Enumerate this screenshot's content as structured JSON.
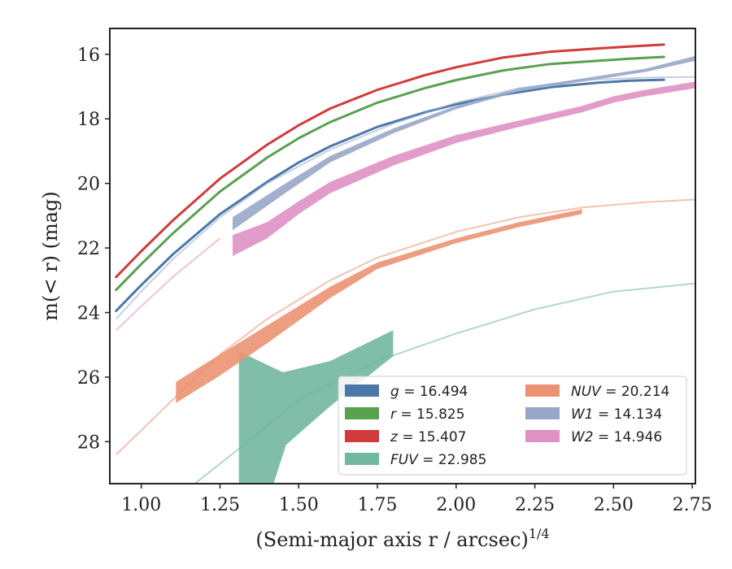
{
  "chart_data": {
    "type": "line",
    "xlabel": "(Semi-major axis r / arcsec)",
    "xlabel_sup": "1/4",
    "ylabel": "m(< r) (mag)",
    "xlim": [
      0.9,
      2.76
    ],
    "ylim": [
      29.3,
      15.2
    ],
    "y_inverted": true,
    "x_ticks": [
      "1.00",
      "1.25",
      "1.50",
      "1.75",
      "2.00",
      "2.25",
      "2.50",
      "2.75"
    ],
    "y_ticks": [
      "16",
      "18",
      "20",
      "22",
      "24",
      "26",
      "28"
    ],
    "grid": false,
    "legend_location": "lower right",
    "colors": {
      "g": "#4c78a8",
      "r": "#59a14f",
      "z": "#d03b3b",
      "FUV": "#72b7a1",
      "NUV": "#eb9272",
      "W1": "#98a7c9",
      "W2": "#df91c4"
    },
    "series": [
      {
        "band": "g",
        "label_var": "g",
        "label_value": "= 16.494",
        "color": "#4c78a8",
        "line": [
          [
            0.92,
            23.95
          ],
          [
            1.0,
            23.15
          ],
          [
            1.1,
            22.2
          ],
          [
            1.25,
            20.95
          ],
          [
            1.4,
            19.95
          ],
          [
            1.5,
            19.35
          ],
          [
            1.6,
            18.85
          ],
          [
            1.75,
            18.25
          ],
          [
            1.9,
            17.8
          ],
          [
            2.0,
            17.55
          ],
          [
            2.15,
            17.25
          ],
          [
            2.3,
            17.02
          ],
          [
            2.45,
            16.88
          ],
          [
            2.55,
            16.82
          ],
          [
            2.66,
            16.79
          ]
        ]
      },
      {
        "band": "r",
        "label_var": "r",
        "label_value": "= 15.825",
        "color": "#59a14f",
        "line": [
          [
            0.92,
            23.3
          ],
          [
            1.0,
            22.5
          ],
          [
            1.1,
            21.55
          ],
          [
            1.25,
            20.25
          ],
          [
            1.4,
            19.2
          ],
          [
            1.5,
            18.6
          ],
          [
            1.6,
            18.1
          ],
          [
            1.75,
            17.5
          ],
          [
            1.9,
            17.05
          ],
          [
            2.0,
            16.8
          ],
          [
            2.15,
            16.5
          ],
          [
            2.3,
            16.3
          ],
          [
            2.45,
            16.2
          ],
          [
            2.55,
            16.14
          ],
          [
            2.66,
            16.08
          ]
        ]
      },
      {
        "band": "z",
        "label_var": "z",
        "label_value": "= 15.407",
        "color": "#d03b3b",
        "line": [
          [
            0.92,
            22.9
          ],
          [
            1.0,
            22.1
          ],
          [
            1.1,
            21.15
          ],
          [
            1.25,
            19.85
          ],
          [
            1.4,
            18.8
          ],
          [
            1.5,
            18.2
          ],
          [
            1.6,
            17.68
          ],
          [
            1.75,
            17.1
          ],
          [
            1.9,
            16.65
          ],
          [
            2.0,
            16.4
          ],
          [
            2.15,
            16.1
          ],
          [
            2.3,
            15.92
          ],
          [
            2.45,
            15.82
          ],
          [
            2.55,
            15.76
          ],
          [
            2.66,
            15.7
          ]
        ]
      },
      {
        "band": "FUV",
        "label_var": "FUV",
        "label_value": "= 22.985",
        "color": "#72b7a1",
        "model": [
          [
            1.17,
            29.3
          ],
          [
            1.3,
            28.3
          ],
          [
            1.5,
            26.7
          ],
          [
            1.75,
            25.5
          ],
          [
            2.0,
            24.65
          ],
          [
            2.25,
            23.9
          ],
          [
            2.5,
            23.35
          ],
          [
            2.76,
            23.1
          ]
        ],
        "band_upper": [
          [
            1.31,
            25.2
          ],
          [
            1.45,
            25.85
          ],
          [
            1.6,
            25.5
          ],
          [
            1.8,
            24.55
          ]
        ],
        "band_lower": [
          [
            1.31,
            29.3
          ],
          [
            1.42,
            29.3
          ],
          [
            1.46,
            28.1
          ],
          [
            1.6,
            26.9
          ],
          [
            1.8,
            25.35
          ]
        ]
      },
      {
        "band": "NUV",
        "label_var": "NUV",
        "label_value": "= 20.214",
        "color": "#eb9272",
        "model": [
          [
            0.92,
            28.4
          ],
          [
            1.0,
            27.65
          ],
          [
            1.1,
            26.7
          ],
          [
            1.25,
            25.3
          ],
          [
            1.4,
            24.2
          ],
          [
            1.6,
            23.0
          ],
          [
            1.75,
            22.3
          ],
          [
            2.0,
            21.5
          ],
          [
            2.2,
            21.05
          ],
          [
            2.4,
            20.75
          ],
          [
            2.6,
            20.58
          ],
          [
            2.76,
            20.5
          ]
        ],
        "band_upper": [
          [
            1.11,
            26.15
          ],
          [
            1.25,
            25.3
          ],
          [
            1.4,
            24.4
          ],
          [
            1.6,
            23.2
          ],
          [
            1.75,
            22.45
          ],
          [
            2.0,
            21.7
          ],
          [
            2.2,
            21.2
          ],
          [
            2.4,
            20.8
          ]
        ],
        "band_lower": [
          [
            1.11,
            26.8
          ],
          [
            1.25,
            25.95
          ],
          [
            1.4,
            24.95
          ],
          [
            1.6,
            23.55
          ],
          [
            1.75,
            22.65
          ],
          [
            2.0,
            21.85
          ],
          [
            2.2,
            21.35
          ],
          [
            2.4,
            20.95
          ]
        ]
      },
      {
        "band": "W1",
        "label_var": "W1",
        "label_value": "= 14.134",
        "color": "#98a7c9",
        "model": [
          [
            0.92,
            24.2
          ],
          [
            1.0,
            23.35
          ],
          [
            1.1,
            22.35
          ],
          [
            1.25,
            21.05
          ],
          [
            1.4,
            20.0
          ],
          [
            1.6,
            18.95
          ],
          [
            1.8,
            18.15
          ],
          [
            2.0,
            17.5
          ],
          [
            2.2,
            17.05
          ],
          [
            2.4,
            16.8
          ],
          [
            2.6,
            16.72
          ],
          [
            2.76,
            16.7
          ]
        ],
        "band_upper": [
          [
            1.29,
            21.05
          ],
          [
            1.45,
            20.05
          ],
          [
            1.6,
            19.15
          ],
          [
            1.8,
            18.3
          ],
          [
            2.0,
            17.6
          ],
          [
            2.2,
            17.05
          ],
          [
            2.4,
            16.75
          ],
          [
            2.6,
            16.45
          ],
          [
            2.76,
            16.05
          ]
        ],
        "band_lower": [
          [
            1.29,
            21.45
          ],
          [
            1.45,
            20.35
          ],
          [
            1.6,
            19.35
          ],
          [
            1.8,
            18.45
          ],
          [
            2.0,
            17.7
          ],
          [
            2.2,
            17.15
          ],
          [
            2.4,
            16.85
          ],
          [
            2.6,
            16.55
          ],
          [
            2.76,
            16.2
          ]
        ]
      },
      {
        "band": "W2",
        "label_var": "W2",
        "label_value": "= 14.946",
        "color": "#df91c4",
        "model": [
          [
            0.92,
            24.55
          ],
          [
            1.0,
            23.8
          ],
          [
            1.1,
            22.9
          ],
          [
            1.25,
            21.7
          ]
        ],
        "band_upper": [
          [
            1.29,
            21.6
          ],
          [
            1.4,
            21.2
          ],
          [
            1.5,
            20.55
          ],
          [
            1.6,
            19.95
          ],
          [
            1.8,
            19.15
          ],
          [
            2.0,
            18.5
          ],
          [
            2.2,
            18.05
          ],
          [
            2.4,
            17.6
          ],
          [
            2.5,
            17.3
          ],
          [
            2.6,
            17.1
          ],
          [
            2.76,
            16.85
          ]
        ],
        "band_lower": [
          [
            1.29,
            22.25
          ],
          [
            1.4,
            21.7
          ],
          [
            1.5,
            20.95
          ],
          [
            1.6,
            20.3
          ],
          [
            1.8,
            19.45
          ],
          [
            2.0,
            18.75
          ],
          [
            2.2,
            18.25
          ],
          [
            2.4,
            17.8
          ],
          [
            2.5,
            17.5
          ],
          [
            2.6,
            17.3
          ],
          [
            2.76,
            17.05
          ]
        ]
      }
    ],
    "legend": [
      {
        "label_var": "g",
        "label_value": "= 16.494",
        "color": "#4c78a8"
      },
      {
        "label_var": "r",
        "label_value": "= 15.825",
        "color": "#59a14f"
      },
      {
        "label_var": "z",
        "label_value": "= 15.407",
        "color": "#d03b3b"
      },
      {
        "label_var": "FUV",
        "label_value": "= 22.985",
        "color": "#72b7a1"
      },
      {
        "label_var": "NUV",
        "label_value": "= 20.214",
        "color": "#eb9272"
      },
      {
        "label_var": "W1",
        "label_value": "= 14.134",
        "color": "#98a7c9"
      },
      {
        "label_var": "W2",
        "label_value": "= 14.946",
        "color": "#df91c4"
      }
    ]
  }
}
